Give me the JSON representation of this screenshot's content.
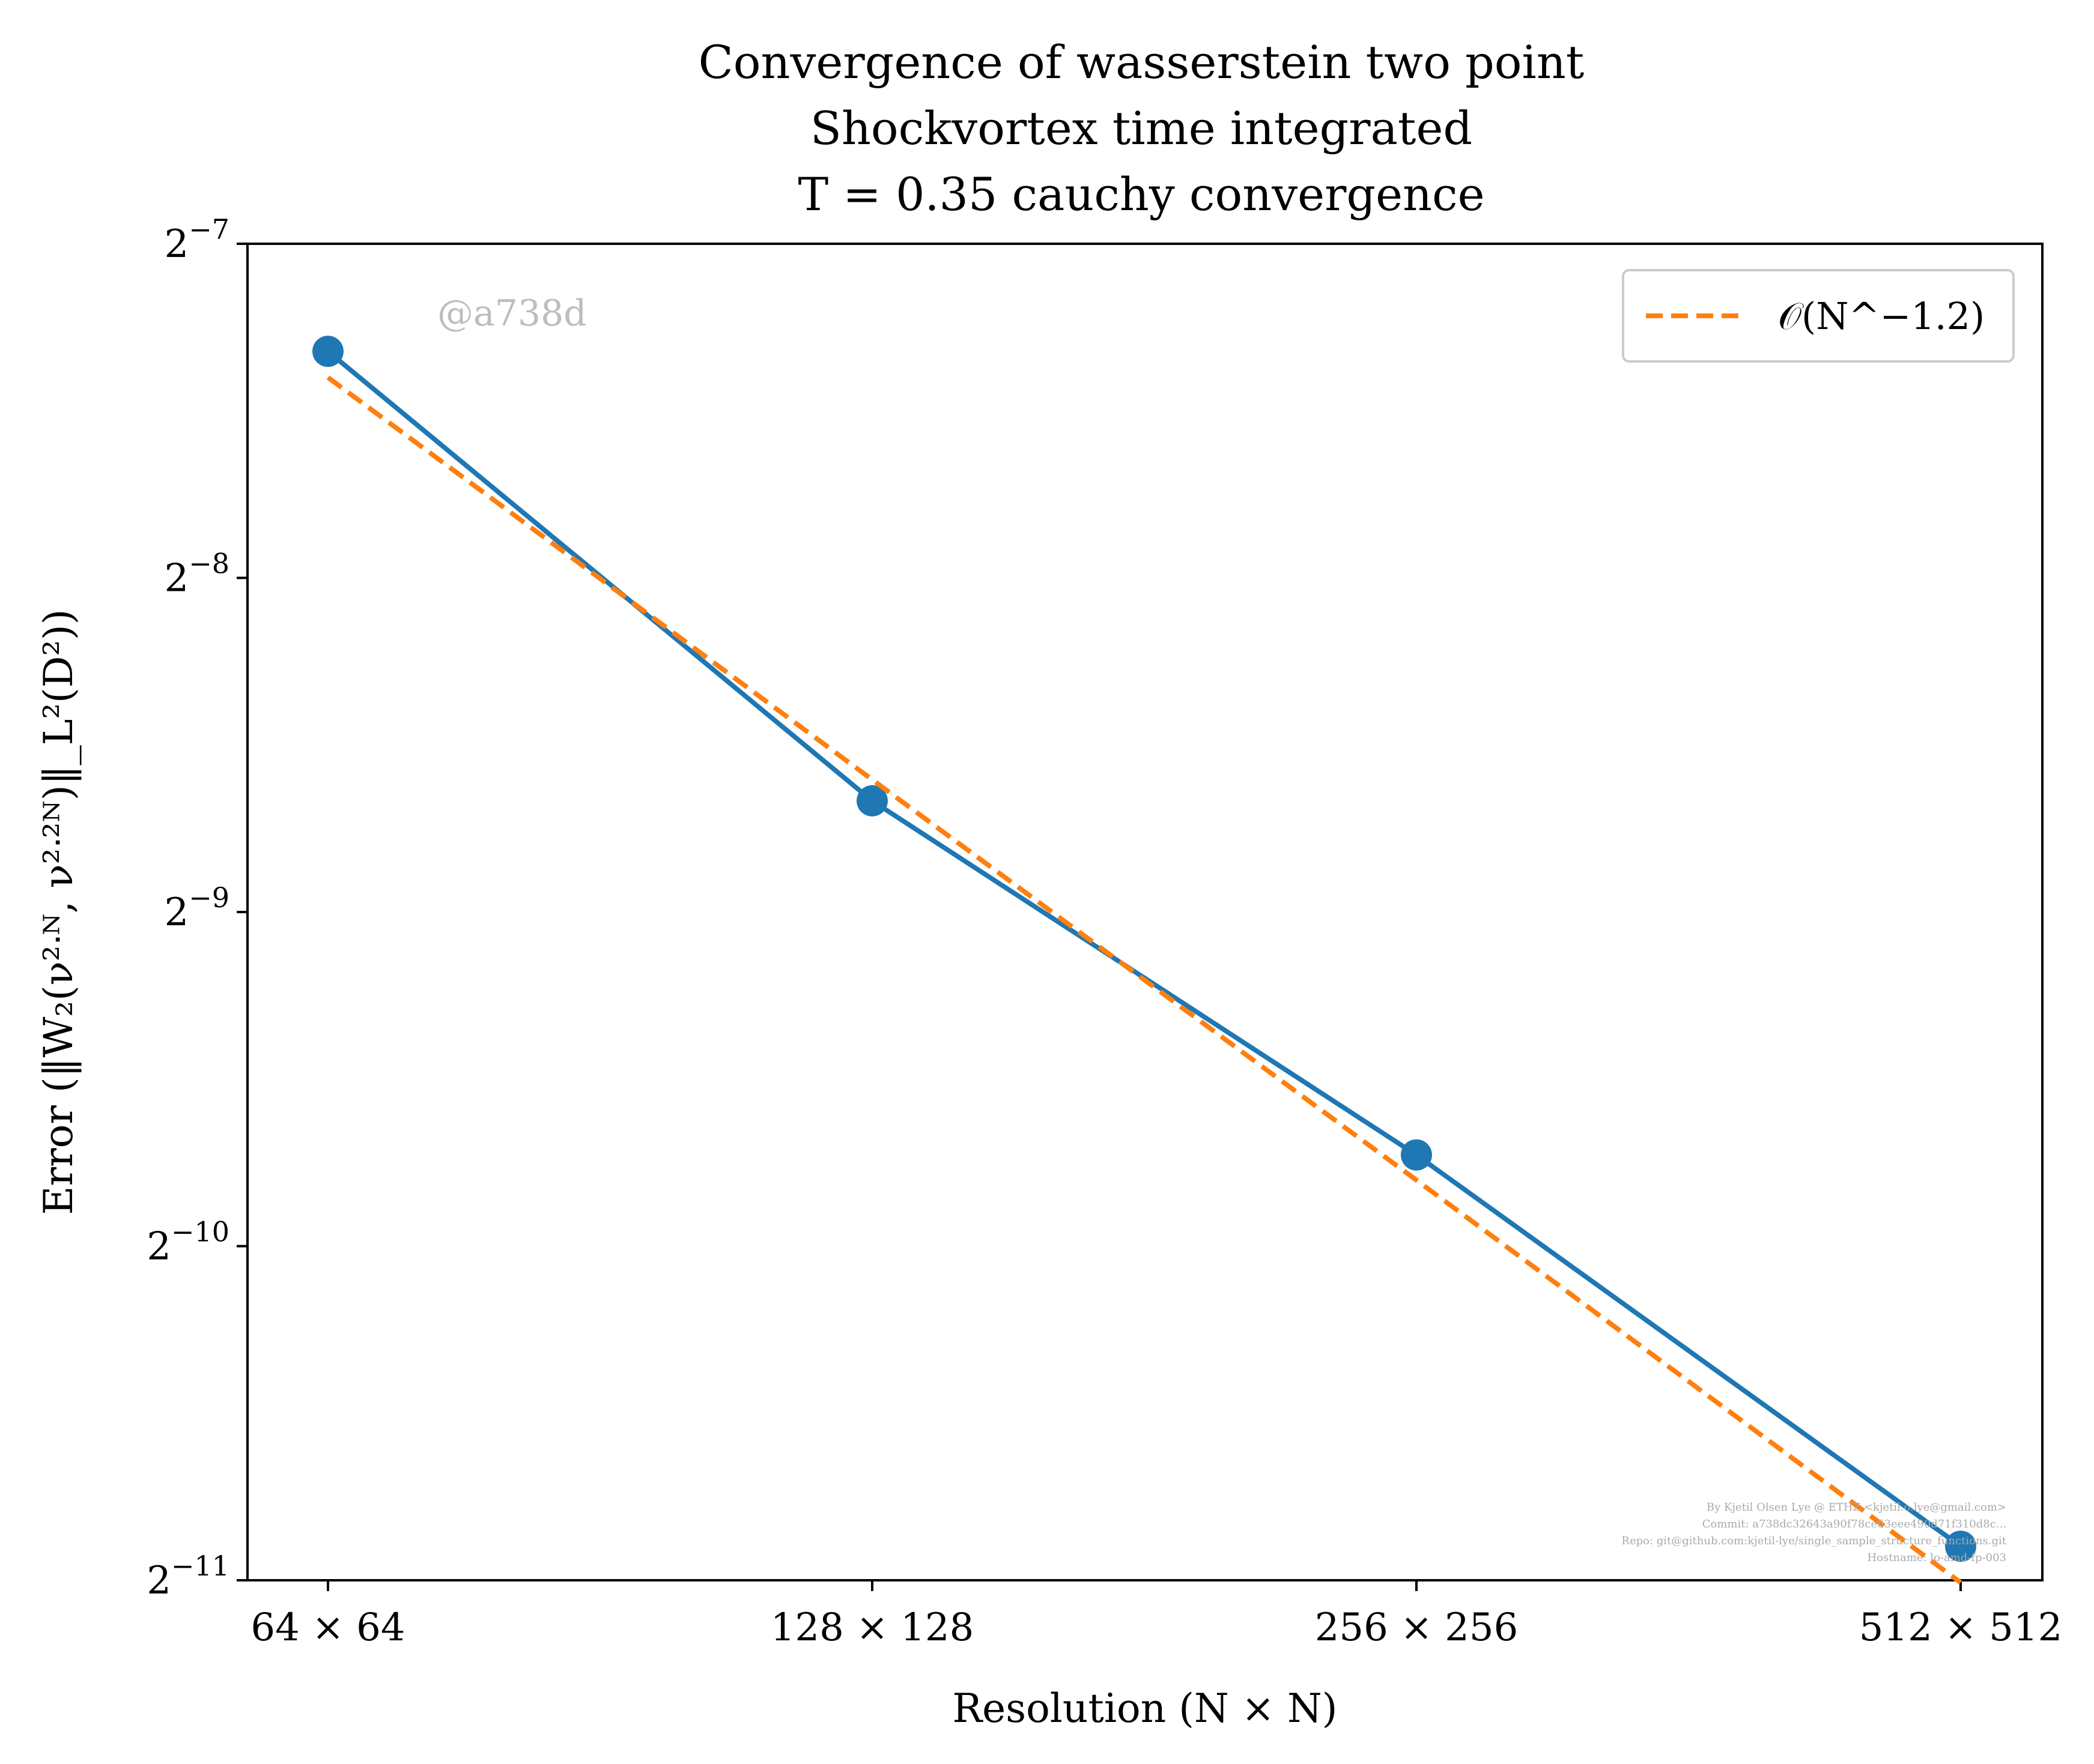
{
  "chart_data": {
    "type": "line",
    "title": [
      "Convergence of wasserstein two point",
      "Shockvortex time integrated",
      "T = 0.35 cauchy convergence"
    ],
    "xlabel": "Resolution (N × N)",
    "ylabel": "Error (‖W₂(ν²ᐧᴺ, ν²ᐧ²ᴺ)‖_L²(D²))",
    "x": [
      64,
      128,
      256,
      512
    ],
    "x_tick_labels": [
      "64 × 64",
      "128 × 128",
      "256 × 256",
      "512 × 512"
    ],
    "x_scale": "log2",
    "y_scale": "log2",
    "ylim_log2": [
      -11,
      -7
    ],
    "y_ticks": [
      {
        "exp": -7,
        "base": "2",
        "sup": "−7"
      },
      {
        "exp": -8,
        "base": "2",
        "sup": "−8"
      },
      {
        "exp": -9,
        "base": "2",
        "sup": "−9"
      },
      {
        "exp": -10,
        "base": "2",
        "sup": "−10"
      },
      {
        "exp": -11,
        "base": "2",
        "sup": "−11"
      }
    ],
    "series": [
      {
        "values": [
          0.00625,
          0.00246,
          0.00118,
          0.000524
        ],
        "color": "#1f77b4",
        "style": "solid",
        "marker": "circle"
      },
      {
        "name": "𝒪(N^−1.2)",
        "values": [
          0.00592,
          0.00257,
          0.00112,
          0.000486
        ],
        "color": "#ff7f0e",
        "style": "dashed"
      }
    ],
    "legend": {
      "placement": "top-right",
      "label": "𝒪(N^−1.2)"
    },
    "grid": false
  },
  "watermark": "@a738d",
  "credits": [
    "By Kjetil Olsen Lye @ ETHZ <kjetil.o.lye@gmail.com>",
    "Commit: a738dc32643a90f78ce63eee490d71f310d8c...",
    "Repo: git@github.com:kjetil-lye/single_sample_structure_functions.git",
    "Hostname: lo-amd-fp-003"
  ]
}
